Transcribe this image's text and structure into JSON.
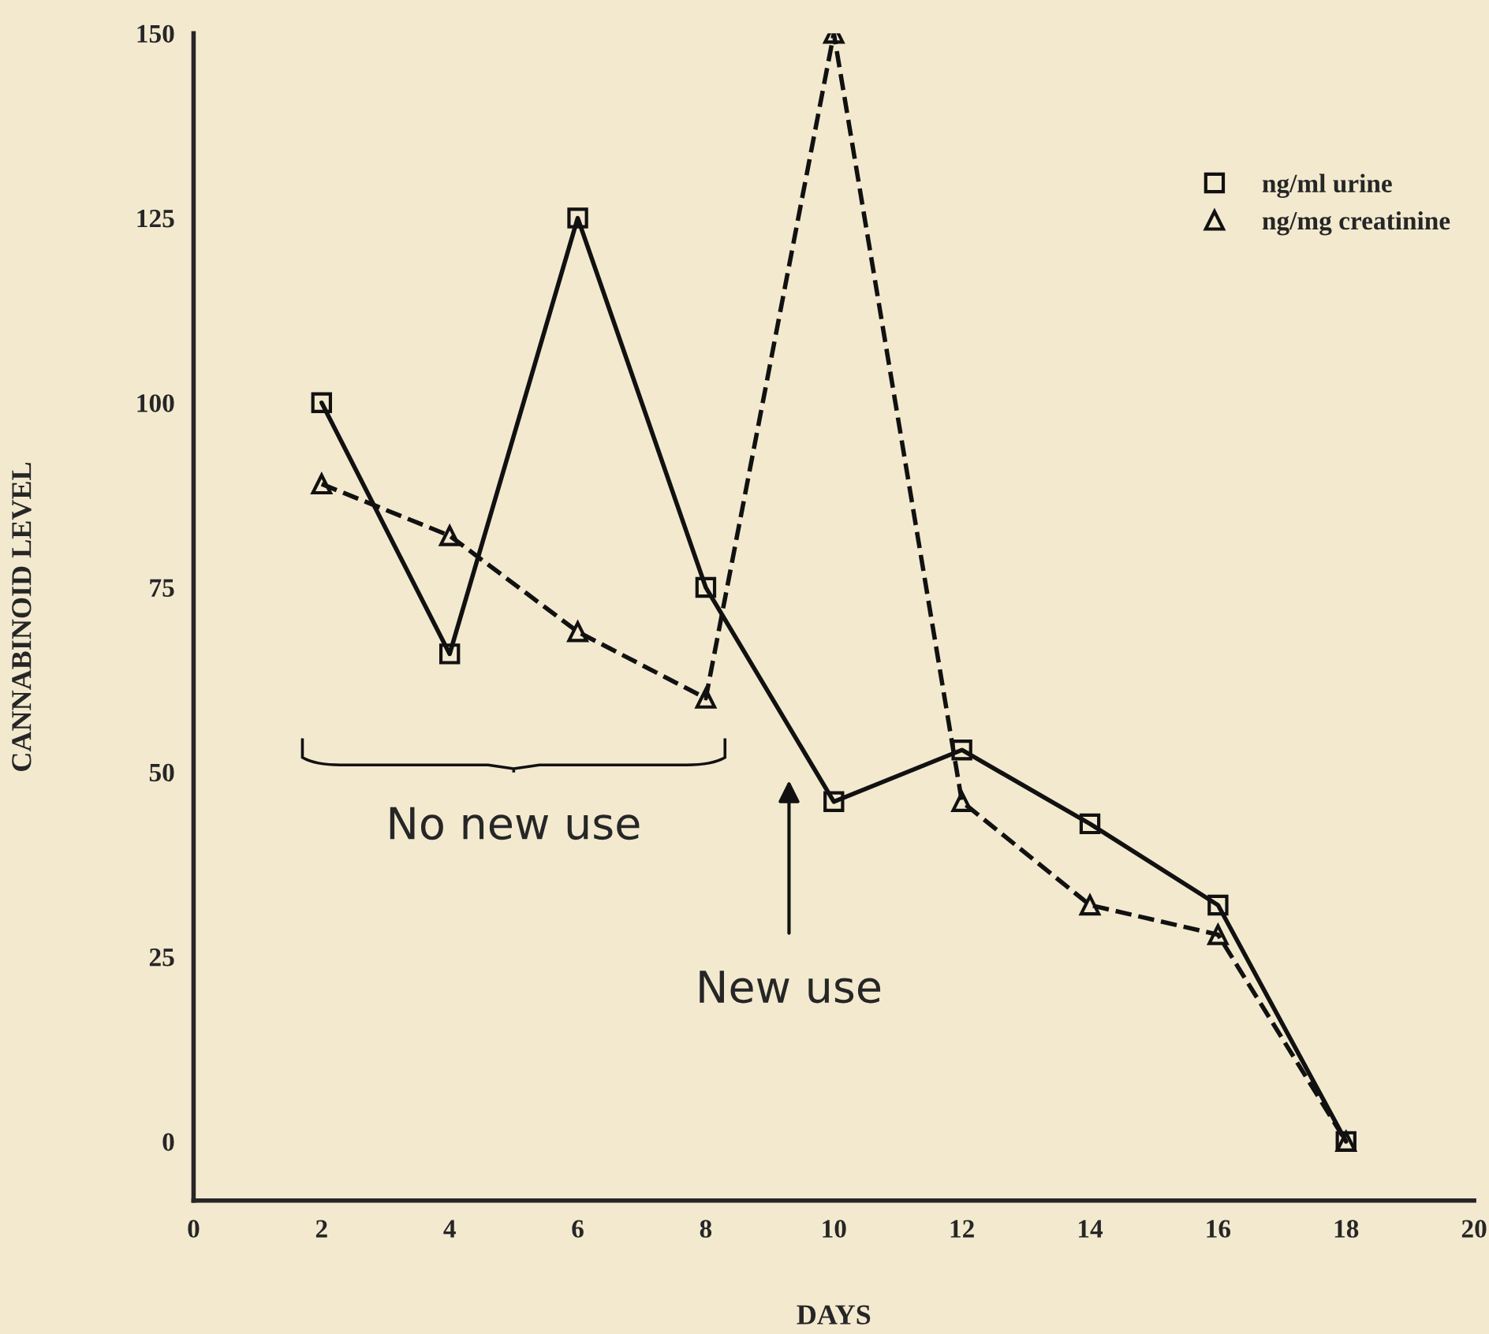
{
  "chart_data": {
    "type": "line",
    "xlabel": "DAYS",
    "ylabel": "CANNABINOID LEVEL",
    "x": [
      2,
      4,
      6,
      8,
      10,
      12,
      14,
      16,
      18
    ],
    "series": [
      {
        "name": "ng/ml urine",
        "color": "#111111",
        "marker": "square",
        "line_style": "solid",
        "values": [
          100,
          66,
          125,
          75,
          46,
          53,
          43,
          32,
          0
        ]
      },
      {
        "name": "ng/mg creatinine",
        "color": "#111111",
        "marker": "triangle",
        "line_style": "dashed",
        "values": [
          89,
          82,
          69,
          60,
          150,
          46,
          32,
          28,
          0
        ]
      }
    ],
    "xlim": [
      0,
      20
    ],
    "ylim": [
      -8,
      150
    ],
    "xticks": [
      0,
      2,
      4,
      6,
      8,
      10,
      12,
      14,
      16,
      18,
      20
    ],
    "yticks": [
      0,
      25,
      50,
      75,
      100,
      125,
      150
    ],
    "legend": "top right",
    "grid": false,
    "annotations": [
      "No new use",
      "New use"
    ]
  }
}
